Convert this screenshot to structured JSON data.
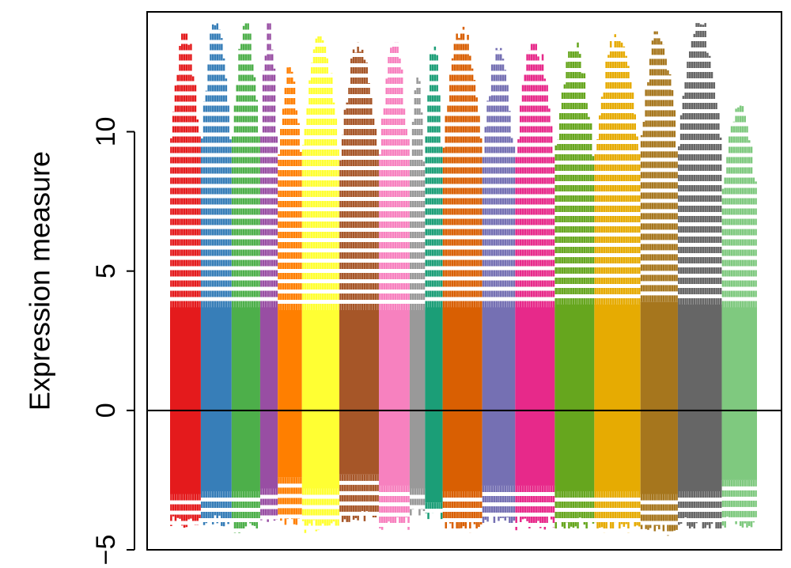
{
  "chart_data": {
    "type": "box",
    "title": "",
    "xlabel": "",
    "ylabel": "Expression measure",
    "ylim": [
      -5,
      14.3
    ],
    "yticks": [
      -5,
      0,
      5,
      10
    ],
    "ytick_labels": [
      "−5",
      "0",
      "5",
      "10"
    ],
    "reference_line": 0,
    "grid": false,
    "legend": "none",
    "groups": [
      {
        "color": "#E41A1C",
        "n_boxes": 14,
        "q1": -3.0,
        "q3": 3.7,
        "whisker_low": -4.3,
        "whisker_high": 13.6
      },
      {
        "color": "#377EB8",
        "n_boxes": 14,
        "q1": -2.9,
        "q3": 3.7,
        "whisker_low": -4.2,
        "whisker_high": 13.9
      },
      {
        "color": "#4DAF4A",
        "n_boxes": 13,
        "q1": -2.9,
        "q3": 3.7,
        "whisker_low": -4.4,
        "whisker_high": 14.0
      },
      {
        "color": "#984EA3",
        "n_boxes": 8,
        "q1": -2.8,
        "q3": 3.7,
        "whisker_low": -4.2,
        "whisker_high": 13.9
      },
      {
        "color": "#FF7F00",
        "n_boxes": 11,
        "q1": -2.4,
        "q3": 3.6,
        "whisker_low": -4.3,
        "whisker_high": 12.5
      },
      {
        "color": "#FFFF33",
        "n_boxes": 17,
        "q1": -2.8,
        "q3": 3.6,
        "whisker_low": -4.4,
        "whisker_high": 13.5
      },
      {
        "color": "#A65628",
        "n_boxes": 18,
        "q1": -2.3,
        "q3": 3.6,
        "whisker_low": -4.1,
        "whisker_high": 13.2
      },
      {
        "color": "#F781BF",
        "n_boxes": 14,
        "q1": -2.7,
        "q3": 3.6,
        "whisker_low": -4.3,
        "whisker_high": 13.2
      },
      {
        "color": "#999999",
        "n_boxes": 7,
        "q1": -2.8,
        "q3": 3.6,
        "whisker_low": -4.0,
        "whisker_high": 12.0
      },
      {
        "color": "#1B9E77",
        "n_boxes": 8,
        "q1": -3.3,
        "q3": 3.7,
        "whisker_low": -4.0,
        "whisker_high": 13.3
      },
      {
        "color": "#D95F02",
        "n_boxes": 18,
        "q1": -2.9,
        "q3": 3.7,
        "whisker_low": -4.4,
        "whisker_high": 13.8
      },
      {
        "color": "#7570B3",
        "n_boxes": 15,
        "q1": -2.7,
        "q3": 3.7,
        "whisker_low": -4.2,
        "whisker_high": 13.0
      },
      {
        "color": "#E7298A",
        "n_boxes": 18,
        "q1": -2.7,
        "q3": 3.7,
        "whisker_low": -4.3,
        "whisker_high": 13.2
      },
      {
        "color": "#66A61E",
        "n_boxes": 18,
        "q1": -2.9,
        "q3": 3.8,
        "whisker_low": -4.3,
        "whisker_high": 13.2
      },
      {
        "color": "#E6AB02",
        "n_boxes": 21,
        "q1": -2.9,
        "q3": 3.8,
        "whisker_low": -4.4,
        "whisker_high": 13.5
      },
      {
        "color": "#A6761D",
        "n_boxes": 17,
        "q1": -3.0,
        "q3": 3.9,
        "whisker_low": -4.5,
        "whisker_high": 13.6
      },
      {
        "color": "#666666",
        "n_boxes": 20,
        "q1": -2.9,
        "q3": 3.8,
        "whisker_low": -4.3,
        "whisker_high": 13.9
      },
      {
        "color": "#7FC97F",
        "n_boxes": 16,
        "q1": -2.5,
        "q3": 3.7,
        "whisker_low": -4.3,
        "whisker_high": 11.0
      }
    ]
  }
}
